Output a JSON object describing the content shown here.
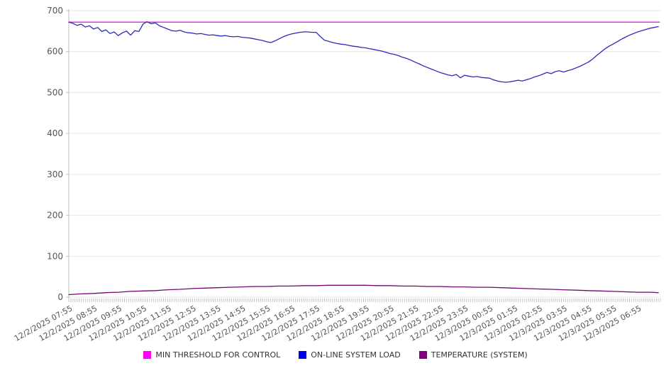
{
  "chart_data": {
    "type": "line",
    "title": "",
    "grid": {
      "horizontal": true,
      "vertical": false
    },
    "legend_position": "bottom",
    "x_axis": {
      "range_minutes": [
        0,
        1435
      ],
      "minor_tick_interval_minutes": 5,
      "first_label_offset_minutes": 5,
      "label_interval_minutes": 60,
      "tick_labels": [
        "12/2/2025 07:55",
        "12/2/2025 08:55",
        "12/2/2025 09:55",
        "12/2/2025 10:55",
        "12/2/2025 11:55",
        "12/2/2025 12:55",
        "12/2/2025 13:55",
        "12/2/2025 14:55",
        "12/2/2025 15:55",
        "12/2/2025 16:55",
        "12/2/2025 17:55",
        "12/2/2025 18:55",
        "12/2/2025 19:55",
        "12/2/2025 20:55",
        "12/2/2025 21:55",
        "12/2/2025 22:55",
        "12/2/2025 23:55",
        "12/3/2025 00:55",
        "12/3/2025 01:55",
        "12/3/2025 02:55",
        "12/3/2025 03:55",
        "12/3/2025 04:55",
        "12/3/2025 05:55",
        "12/3/2025 06:55"
      ]
    },
    "y_axis": {
      "min": 0,
      "max": 700,
      "tick_step": 100,
      "tick_labels": [
        "0",
        "100",
        "200",
        "300",
        "400",
        "500",
        "600",
        "700"
      ]
    },
    "series": [
      {
        "name": "MIN THRESHOLD FOR CONTROL",
        "line_color": "#dd22dd",
        "legend_color": "#ff00ff",
        "points": [
          [
            0,
            672
          ],
          [
            1433,
            672
          ]
        ]
      },
      {
        "name": "ON-LINE SYSTEM LOAD",
        "line_color": "#2b2bbd",
        "legend_color": "#0000ee",
        "points": [
          [
            0,
            672
          ],
          [
            10,
            669
          ],
          [
            20,
            664
          ],
          [
            30,
            667
          ],
          [
            40,
            660
          ],
          [
            50,
            663
          ],
          [
            60,
            655
          ],
          [
            70,
            659
          ],
          [
            80,
            649
          ],
          [
            90,
            653
          ],
          [
            100,
            644
          ],
          [
            110,
            648
          ],
          [
            120,
            639
          ],
          [
            130,
            646
          ],
          [
            140,
            650
          ],
          [
            150,
            640
          ],
          [
            160,
            651
          ],
          [
            170,
            649
          ],
          [
            180,
            667
          ],
          [
            190,
            673
          ],
          [
            200,
            668
          ],
          [
            210,
            670
          ],
          [
            220,
            663
          ],
          [
            230,
            659
          ],
          [
            240,
            655
          ],
          [
            250,
            651
          ],
          [
            260,
            650
          ],
          [
            270,
            652
          ],
          [
            280,
            648
          ],
          [
            290,
            646
          ],
          [
            300,
            645
          ],
          [
            310,
            643
          ],
          [
            320,
            644
          ],
          [
            330,
            642
          ],
          [
            340,
            640
          ],
          [
            350,
            641
          ],
          [
            360,
            639
          ],
          [
            370,
            638
          ],
          [
            380,
            639
          ],
          [
            390,
            637
          ],
          [
            400,
            636
          ],
          [
            410,
            637
          ],
          [
            420,
            635
          ],
          [
            430,
            634
          ],
          [
            440,
            633
          ],
          [
            450,
            631
          ],
          [
            460,
            629
          ],
          [
            470,
            627
          ],
          [
            480,
            624
          ],
          [
            490,
            622
          ],
          [
            500,
            626
          ],
          [
            510,
            631
          ],
          [
            520,
            636
          ],
          [
            530,
            640
          ],
          [
            540,
            643
          ],
          [
            550,
            645
          ],
          [
            560,
            647
          ],
          [
            570,
            648
          ],
          [
            580,
            648
          ],
          [
            590,
            647
          ],
          [
            600,
            647
          ],
          [
            610,
            637
          ],
          [
            620,
            628
          ],
          [
            630,
            625
          ],
          [
            640,
            622
          ],
          [
            650,
            620
          ],
          [
            660,
            618
          ],
          [
            670,
            617
          ],
          [
            680,
            615
          ],
          [
            690,
            613
          ],
          [
            700,
            612
          ],
          [
            710,
            610
          ],
          [
            720,
            609
          ],
          [
            730,
            607
          ],
          [
            740,
            605
          ],
          [
            750,
            603
          ],
          [
            760,
            601
          ],
          [
            770,
            598
          ],
          [
            780,
            595
          ],
          [
            790,
            593
          ],
          [
            800,
            590
          ],
          [
            810,
            586
          ],
          [
            820,
            583
          ],
          [
            830,
            579
          ],
          [
            840,
            574
          ],
          [
            850,
            570
          ],
          [
            860,
            565
          ],
          [
            870,
            561
          ],
          [
            880,
            557
          ],
          [
            890,
            553
          ],
          [
            900,
            549
          ],
          [
            910,
            546
          ],
          [
            920,
            543
          ],
          [
            930,
            541
          ],
          [
            940,
            544
          ],
          [
            950,
            536
          ],
          [
            960,
            542
          ],
          [
            970,
            540
          ],
          [
            980,
            538
          ],
          [
            990,
            539
          ],
          [
            1000,
            537
          ],
          [
            1010,
            536
          ],
          [
            1020,
            535
          ],
          [
            1030,
            531
          ],
          [
            1040,
            528
          ],
          [
            1050,
            526
          ],
          [
            1060,
            525
          ],
          [
            1070,
            526
          ],
          [
            1080,
            528
          ],
          [
            1090,
            530
          ],
          [
            1100,
            528
          ],
          [
            1110,
            531
          ],
          [
            1120,
            534
          ],
          [
            1130,
            538
          ],
          [
            1140,
            541
          ],
          [
            1150,
            545
          ],
          [
            1160,
            549
          ],
          [
            1170,
            546
          ],
          [
            1180,
            551
          ],
          [
            1190,
            553
          ],
          [
            1200,
            550
          ],
          [
            1210,
            553
          ],
          [
            1220,
            556
          ],
          [
            1230,
            560
          ],
          [
            1240,
            564
          ],
          [
            1250,
            569
          ],
          [
            1260,
            574
          ],
          [
            1270,
            581
          ],
          [
            1280,
            590
          ],
          [
            1290,
            598
          ],
          [
            1300,
            606
          ],
          [
            1310,
            613
          ],
          [
            1320,
            618
          ],
          [
            1330,
            624
          ],
          [
            1340,
            630
          ],
          [
            1350,
            635
          ],
          [
            1360,
            640
          ],
          [
            1370,
            644
          ],
          [
            1380,
            648
          ],
          [
            1390,
            651
          ],
          [
            1400,
            654
          ],
          [
            1410,
            657
          ],
          [
            1420,
            659
          ],
          [
            1430,
            661
          ]
        ]
      },
      {
        "name": "TEMPERATURE (SYSTEM)",
        "line_color": "#730973",
        "legend_color": "#800080",
        "points": [
          [
            0,
            6
          ],
          [
            30,
            8
          ],
          [
            60,
            9
          ],
          [
            90,
            11
          ],
          [
            120,
            12
          ],
          [
            150,
            14
          ],
          [
            180,
            15
          ],
          [
            210,
            16
          ],
          [
            240,
            18
          ],
          [
            270,
            19
          ],
          [
            300,
            21
          ],
          [
            330,
            22
          ],
          [
            360,
            23
          ],
          [
            390,
            24
          ],
          [
            420,
            25
          ],
          [
            450,
            26
          ],
          [
            480,
            26
          ],
          [
            510,
            27
          ],
          [
            540,
            27
          ],
          [
            570,
            28
          ],
          [
            600,
            28
          ],
          [
            630,
            29
          ],
          [
            660,
            29
          ],
          [
            690,
            29
          ],
          [
            720,
            29
          ],
          [
            750,
            28
          ],
          [
            780,
            28
          ],
          [
            810,
            27
          ],
          [
            840,
            27
          ],
          [
            870,
            26
          ],
          [
            900,
            26
          ],
          [
            930,
            25
          ],
          [
            960,
            25
          ],
          [
            990,
            24
          ],
          [
            1020,
            24
          ],
          [
            1050,
            23
          ],
          [
            1080,
            22
          ],
          [
            1110,
            21
          ],
          [
            1140,
            20
          ],
          [
            1170,
            19
          ],
          [
            1200,
            18
          ],
          [
            1230,
            17
          ],
          [
            1260,
            16
          ],
          [
            1290,
            15
          ],
          [
            1320,
            14
          ],
          [
            1350,
            13
          ],
          [
            1380,
            12
          ],
          [
            1410,
            12
          ],
          [
            1430,
            11
          ]
        ]
      }
    ],
    "style": {
      "grid_color": "#e6e6e6",
      "axis_color": "#bdbdbd",
      "tick_color": "#c4c4c4",
      "label_color": "#555555",
      "legend_text_color": "#333333",
      "background": "#ffffff"
    }
  }
}
